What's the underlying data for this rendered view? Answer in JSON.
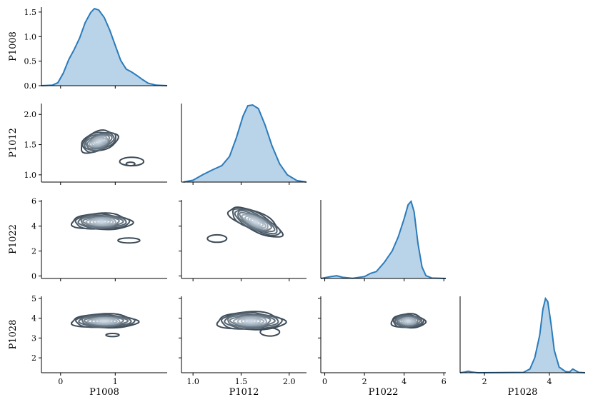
{
  "chart_data": {
    "type": "pairplot",
    "variables": [
      "P1008",
      "P1012",
      "P1022",
      "P1028"
    ],
    "colors": {
      "kde_line": "#2b7bba",
      "kde_fill": "#b9d3e8",
      "contour_dark": "#3b4a57",
      "contour_light": "#dbe8f4"
    },
    "axes": {
      "P1008": {
        "range": [
          -0.35,
          1.95
        ],
        "ticks": [
          0,
          1
        ],
        "tick_labels": [
          "0",
          "1"
        ]
      },
      "P1012": {
        "range": [
          0.88,
          2.18
        ],
        "ticks": [
          1.0,
          1.5,
          2.0
        ],
        "tick_labels": [
          "1.0",
          "1.5",
          "2.0"
        ]
      },
      "P1022": {
        "range": [
          -0.2,
          6.1
        ],
        "ticks": [
          0,
          2,
          4,
          6
        ],
        "tick_labels": [
          "0",
          "2",
          "4",
          "6"
        ]
      },
      "P1028": {
        "range": [
          1.25,
          5.1
        ],
        "ticks": [
          2,
          3,
          4,
          5
        ],
        "tick_labels": [
          "2",
          "3",
          "4",
          "5"
        ]
      }
    },
    "diag_density_axis": {
      "range": [
        0,
        1.6
      ],
      "ticks": [
        0.0,
        0.5,
        1.0,
        1.5
      ],
      "tick_labels": [
        "0.0",
        "0.5",
        "1.0",
        "1.5"
      ]
    },
    "x_bottom_ticks": {
      "P1028": {
        "ticks": [
          2,
          4
        ],
        "tick_labels": [
          "2",
          "4"
        ]
      }
    },
    "diagonal_kde": [
      {
        "var": "P1008",
        "peak": 1.53,
        "points": [
          [
            -0.35,
            0
          ],
          [
            -0.15,
            0.01
          ],
          [
            -0.05,
            0.06
          ],
          [
            0.05,
            0.25
          ],
          [
            0.15,
            0.52
          ],
          [
            0.25,
            0.72
          ],
          [
            0.35,
            0.95
          ],
          [
            0.45,
            1.25
          ],
          [
            0.55,
            1.45
          ],
          [
            0.62,
            1.53
          ],
          [
            0.7,
            1.5
          ],
          [
            0.8,
            1.35
          ],
          [
            0.9,
            1.1
          ],
          [
            1.0,
            0.8
          ],
          [
            1.1,
            0.5
          ],
          [
            1.2,
            0.33
          ],
          [
            1.3,
            0.27
          ],
          [
            1.4,
            0.2
          ],
          [
            1.5,
            0.12
          ],
          [
            1.6,
            0.05
          ],
          [
            1.75,
            0.01
          ],
          [
            1.95,
            0
          ]
        ]
      },
      {
        "var": "P1012",
        "peak": 2.1,
        "points": [
          [
            0.9,
            0
          ],
          [
            1.0,
            0.05
          ],
          [
            1.1,
            0.2
          ],
          [
            1.2,
            0.33
          ],
          [
            1.3,
            0.45
          ],
          [
            1.38,
            0.7
          ],
          [
            1.45,
            1.2
          ],
          [
            1.52,
            1.8
          ],
          [
            1.57,
            2.08
          ],
          [
            1.62,
            2.1
          ],
          [
            1.68,
            2.0
          ],
          [
            1.75,
            1.55
          ],
          [
            1.82,
            1.0
          ],
          [
            1.9,
            0.5
          ],
          [
            1.98,
            0.2
          ],
          [
            2.08,
            0.04
          ],
          [
            2.18,
            0
          ]
        ]
      },
      {
        "var": "P1022",
        "peak": 0.335,
        "points": [
          [
            -0.2,
            0
          ],
          [
            0.3,
            0.008
          ],
          [
            0.6,
            0.012
          ],
          [
            0.9,
            0.005
          ],
          [
            1.4,
            0.001
          ],
          [
            2.0,
            0.008
          ],
          [
            2.3,
            0.022
          ],
          [
            2.6,
            0.03
          ],
          [
            3.0,
            0.07
          ],
          [
            3.4,
            0.12
          ],
          [
            3.7,
            0.18
          ],
          [
            4.0,
            0.26
          ],
          [
            4.2,
            0.32
          ],
          [
            4.35,
            0.335
          ],
          [
            4.5,
            0.29
          ],
          [
            4.7,
            0.15
          ],
          [
            4.9,
            0.05
          ],
          [
            5.1,
            0.012
          ],
          [
            5.4,
            0.002
          ],
          [
            6.1,
            0
          ]
        ]
      },
      {
        "var": "P1028",
        "peak": 2.0,
        "points": [
          [
            1.25,
            0
          ],
          [
            1.4,
            0.02
          ],
          [
            1.5,
            0.04
          ],
          [
            1.6,
            0.02
          ],
          [
            1.8,
            0
          ],
          [
            3.2,
            0.01
          ],
          [
            3.4,
            0.1
          ],
          [
            3.55,
            0.4
          ],
          [
            3.7,
            1.0
          ],
          [
            3.8,
            1.7
          ],
          [
            3.88,
            1.98
          ],
          [
            3.95,
            1.9
          ],
          [
            4.05,
            1.3
          ],
          [
            4.15,
            0.6
          ],
          [
            4.3,
            0.15
          ],
          [
            4.5,
            0.03
          ],
          [
            4.62,
            0.02
          ],
          [
            4.72,
            0.1
          ],
          [
            4.8,
            0.06
          ],
          [
            4.9,
            0.01
          ],
          [
            5.1,
            0
          ]
        ]
      }
    ],
    "pairwise_kde": [
      {
        "x": "P1008",
        "y": "P1012",
        "center": [
          0.7,
          1.55
        ],
        "spread": [
          0.35,
          0.16
        ],
        "rotation_deg": -18,
        "levels": 10,
        "outlier_blobs": [
          {
            "center": [
              1.3,
              1.22
            ],
            "spread": [
              0.22,
              0.07
            ]
          },
          {
            "center": [
              1.28,
              1.18
            ],
            "spread": [
              0.08,
              0.03
            ]
          }
        ]
      },
      {
        "x": "P1008",
        "y": "P1022",
        "center": [
          0.75,
          4.35
        ],
        "spread": [
          0.55,
          0.65
        ],
        "rotation_deg": 0,
        "levels": 10,
        "outlier_blobs": [
          {
            "center": [
              1.25,
              2.85
            ],
            "spread": [
              0.2,
              0.2
            ]
          }
        ]
      },
      {
        "x": "P1012",
        "y": "P1022",
        "center": [
          1.65,
          4.35
        ],
        "spread": [
          0.3,
          0.75
        ],
        "rotation_deg": 25,
        "levels": 10,
        "outlier_blobs": [
          {
            "center": [
              1.25,
              3.0
            ],
            "spread": [
              0.1,
              0.3
            ]
          }
        ]
      },
      {
        "x": "P1008",
        "y": "P1028",
        "center": [
          0.8,
          3.85
        ],
        "spread": [
          0.6,
          0.35
        ],
        "rotation_deg": 0,
        "levels": 10,
        "outlier_blobs": [
          {
            "center": [
              0.95,
              3.15
            ],
            "spread": [
              0.12,
              0.08
            ]
          }
        ]
      },
      {
        "x": "P1012",
        "y": "P1028",
        "center": [
          1.6,
          3.85
        ],
        "spread": [
          0.35,
          0.45
        ],
        "rotation_deg": 0,
        "levels": 10,
        "outlier_blobs": [
          {
            "center": [
              1.8,
              3.3
            ],
            "spread": [
              0.1,
              0.2
            ]
          }
        ]
      },
      {
        "x": "P1022",
        "y": "P1028",
        "center": [
          4.2,
          3.85
        ],
        "spread": [
          0.85,
          0.35
        ],
        "rotation_deg": 0,
        "levels": 10,
        "outlier_blobs": []
      }
    ]
  }
}
